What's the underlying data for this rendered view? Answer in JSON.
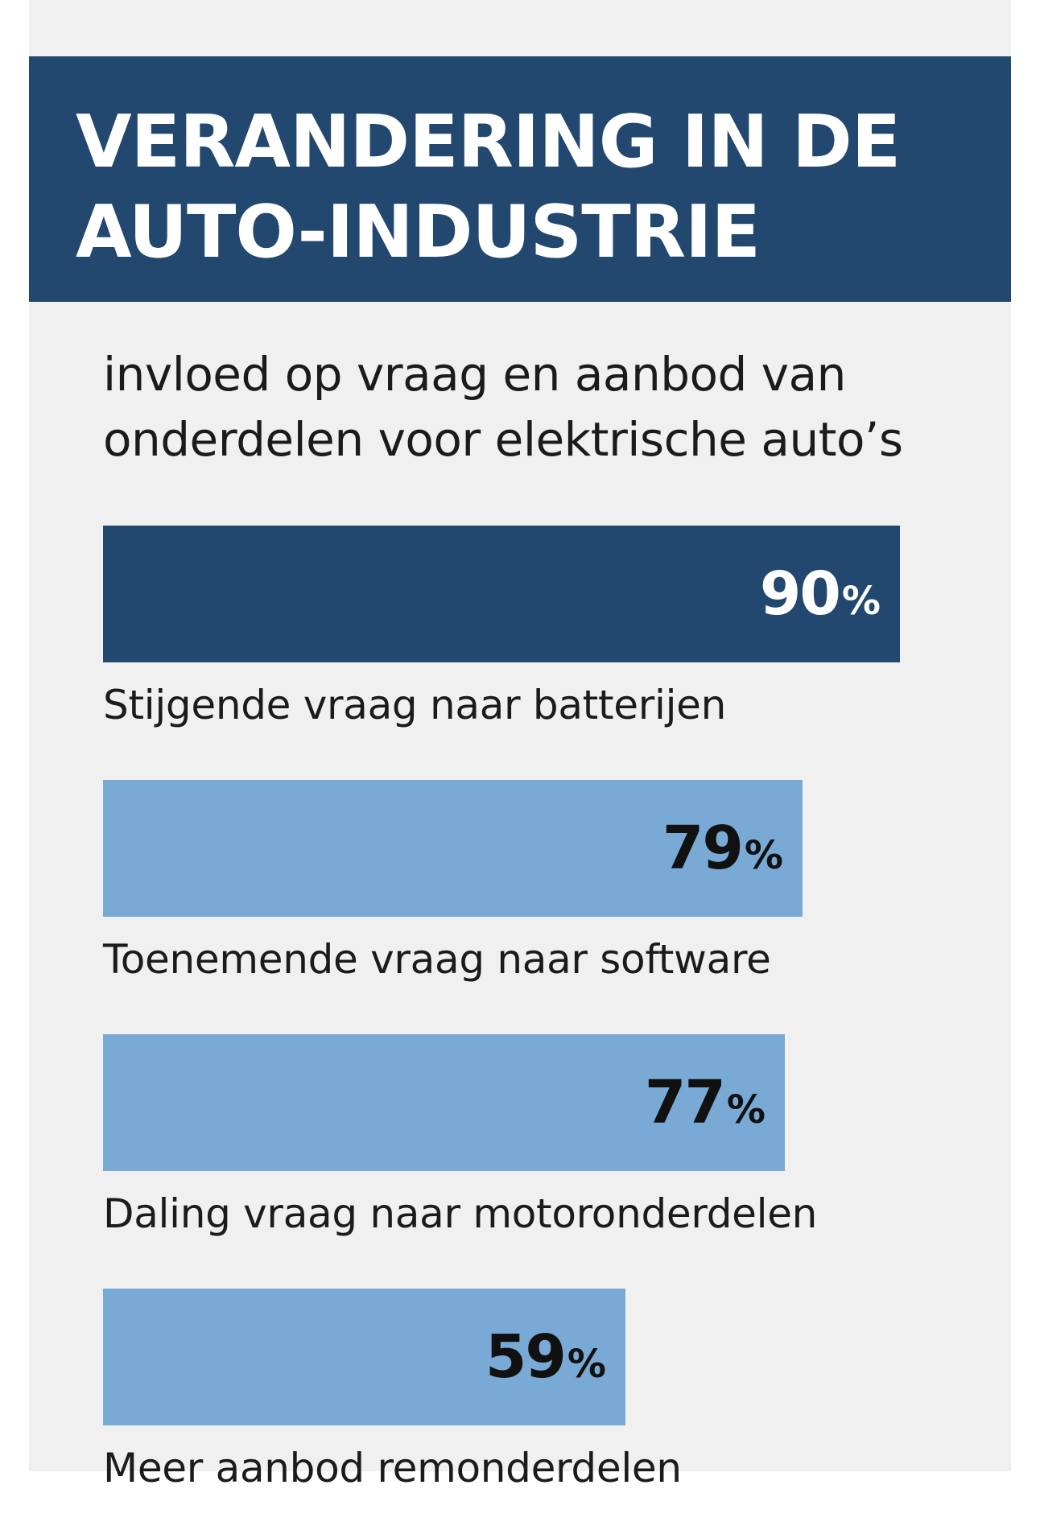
{
  "header": {
    "title": "VERANDERING IN DE\nAUTO-INDUSTRIE",
    "subtitle": "invloed op vraag en aanbod van\nonderdelen voor elektrische auto’s"
  },
  "colors": {
    "banner": "#22486f",
    "highlight_bar": "#22486f",
    "bar": "#79a9d5",
    "highlight_text": "#ffffff",
    "bar_text": "#111111",
    "background": "#f0f0f0"
  },
  "chart_data": {
    "type": "bar",
    "orientation": "horizontal",
    "title": "VERANDERING IN DE AUTO-INDUSTRIE",
    "subtitle": "invloed op vraag en aanbod van onderdelen voor elektrische auto’s",
    "unit": "%",
    "categories": [
      "Stijgende vraag naar batterijen",
      "Toenemende vraag naar software",
      "Daling vraag naar motoronderdelen",
      "Meer aanbod remonderdelen"
    ],
    "values": [
      90,
      79,
      77,
      59
    ],
    "xlim": [
      0,
      100
    ],
    "grid": false,
    "legend": "none",
    "highlighted_index": 0
  }
}
